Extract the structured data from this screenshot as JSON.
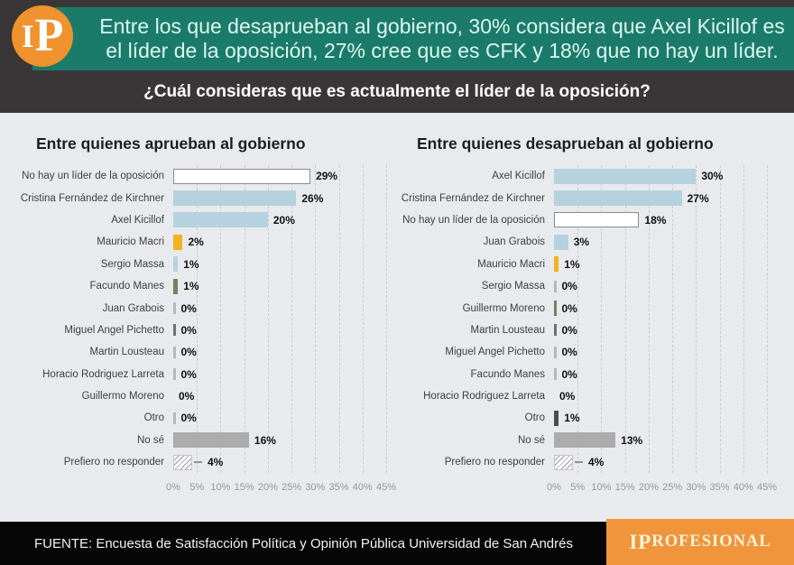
{
  "header": {
    "logo_i": "I",
    "logo_p": "P",
    "headline_line1": "Entre los que desaprueban al gobierno, 30% considera que Axel Kicillof es",
    "headline_line2": "el líder de la oposición, 27% cree que es CFK y 18% que no hay un líder.",
    "question": "¿Cuál consideras que es actualmente el líder de la oposición?"
  },
  "footer": {
    "source": "FUENTE: Encuesta de Satisfacción Política y Opinión Pública Universidad de San Andrés",
    "brand_prefix": "IP",
    "brand_suffix": "ROFESIONAL"
  },
  "colors": {
    "teal_banner": "#1B7B6A",
    "charcoal": "#3A3637",
    "logo_orange": "#F0922D",
    "brand_orange": "#F0953B",
    "chart_background": "#E8EAED",
    "bar_blue": "#B5D2DF",
    "bar_yellow": "#F3B31F",
    "bar_olive": "#76825F",
    "bar_gray": "#ACACAC",
    "bar_dark": "#4D4D4D",
    "headline_text": "#DCF6EF"
  },
  "chart_data": [
    {
      "type": "bar",
      "orientation": "horizontal",
      "title": "Entre quienes aprueban al gobierno",
      "categories": [
        "No hay un líder de la oposición",
        "Cristina Fernández de Kirchner",
        "Axel Kicillof",
        "Mauricio Macri",
        "Sergio Massa",
        "Facundo Manes",
        "Juan Grabois",
        "Miguel Angel Pichetto",
        "Martin Lousteau",
        "Horacio Rodriguez Larreta",
        "Guillermo Moreno",
        "Otro",
        "No sé",
        "Prefiero no responder"
      ],
      "values": [
        29,
        26,
        20,
        2,
        1,
        1,
        0,
        0,
        0,
        0,
        0,
        0,
        16,
        4
      ],
      "bar_styles": [
        "white",
        "blue",
        "blue",
        "yellow",
        "blue",
        "olive",
        "tick",
        "tick-dark",
        "tick",
        "tick",
        "none",
        "tick",
        "gray",
        "hatch"
      ],
      "value_labels": [
        "29%",
        "26%",
        "20%",
        "2%",
        "1%",
        "1%",
        "0%",
        "0%",
        "0%",
        "0%",
        "0%",
        "0%",
        "16%",
        "4%"
      ],
      "xlim": [
        0,
        45
      ],
      "x_ticks": [
        "0%",
        "5%",
        "10%",
        "15%",
        "20%",
        "25%",
        "30%",
        "35%",
        "40%",
        "45%"
      ],
      "grid": "dashed-vertical"
    },
    {
      "type": "bar",
      "orientation": "horizontal",
      "title": "Entre quienes desaprueban al gobierno",
      "categories": [
        "Axel Kicillof",
        "Cristina Fernández de Kirchner",
        "No hay un líder de la oposición",
        "Juan Grabois",
        "Mauricio Macri",
        "Sergio Massa",
        "Guillermo Moreno",
        "Martin Lousteau",
        "Miguel Angel Pichetto",
        "Facundo Manes",
        "Horacio Rodriguez Larreta",
        "Otro",
        "No sé",
        "Prefiero no responder"
      ],
      "values": [
        30,
        27,
        18,
        3,
        1,
        0,
        0,
        0,
        0,
        0,
        0,
        1,
        13,
        4
      ],
      "bar_styles": [
        "blue",
        "blue",
        "white",
        "blue",
        "yellow",
        "tick",
        "olive",
        "tick-dark",
        "tick",
        "tick",
        "none",
        "dark",
        "gray",
        "hatch"
      ],
      "value_labels": [
        "30%",
        "27%",
        "18%",
        "3%",
        "1%",
        "0%",
        "0%",
        "0%",
        "0%",
        "0%",
        "0%",
        "1%",
        "13%",
        "4%"
      ],
      "xlim": [
        0,
        45
      ],
      "x_ticks": [
        "0%",
        "5%",
        "10%",
        "15%",
        "20%",
        "25%",
        "30%",
        "35%",
        "40%",
        "45%"
      ],
      "grid": "dashed-vertical"
    }
  ]
}
